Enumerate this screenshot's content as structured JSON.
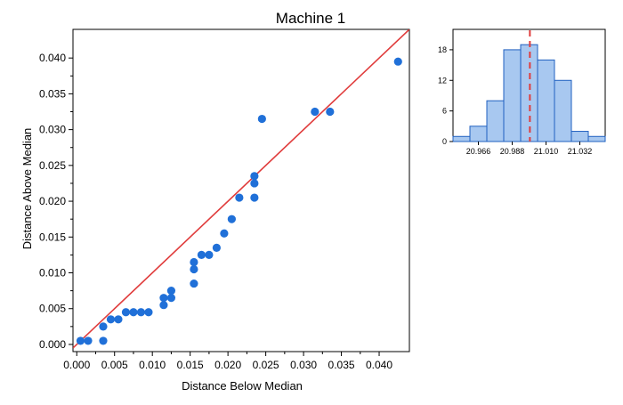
{
  "chart_data": [
    {
      "type": "scatter",
      "title": "Machine 1",
      "xlabel": "Distance Below Median",
      "ylabel": "Distance Above Median",
      "xlim": [
        -0.0005,
        0.044
      ],
      "ylim": [
        -0.001,
        0.044
      ],
      "xticks": [
        "0.000",
        "0.005",
        "0.010",
        "0.015",
        "0.020",
        "0.025",
        "0.030",
        "0.035",
        "0.040"
      ],
      "yticks": [
        "0.000",
        "0.005",
        "0.010",
        "0.015",
        "0.020",
        "0.025",
        "0.030",
        "0.035",
        "0.040"
      ],
      "grid": false,
      "reference_line": {
        "slope": 1,
        "intercept": 0,
        "color": "#e03c3c"
      },
      "marker_color": "#2070d8",
      "points": [
        {
          "x": 0.0005,
          "y": 0.0005
        },
        {
          "x": 0.0015,
          "y": 0.0005
        },
        {
          "x": 0.0035,
          "y": 0.0005
        },
        {
          "x": 0.0035,
          "y": 0.0025
        },
        {
          "x": 0.0045,
          "y": 0.0035
        },
        {
          "x": 0.0055,
          "y": 0.0035
        },
        {
          "x": 0.0065,
          "y": 0.0045
        },
        {
          "x": 0.0075,
          "y": 0.0045
        },
        {
          "x": 0.0085,
          "y": 0.0045
        },
        {
          "x": 0.0095,
          "y": 0.0045
        },
        {
          "x": 0.0115,
          "y": 0.0055
        },
        {
          "x": 0.0115,
          "y": 0.0065
        },
        {
          "x": 0.0125,
          "y": 0.0065
        },
        {
          "x": 0.0125,
          "y": 0.0075
        },
        {
          "x": 0.0155,
          "y": 0.0085
        },
        {
          "x": 0.0155,
          "y": 0.0105
        },
        {
          "x": 0.0155,
          "y": 0.0115
        },
        {
          "x": 0.0165,
          "y": 0.0125
        },
        {
          "x": 0.0175,
          "y": 0.0125
        },
        {
          "x": 0.0185,
          "y": 0.0135
        },
        {
          "x": 0.0195,
          "y": 0.0155
        },
        {
          "x": 0.0205,
          "y": 0.0175
        },
        {
          "x": 0.0215,
          "y": 0.0205
        },
        {
          "x": 0.0235,
          "y": 0.0205
        },
        {
          "x": 0.0235,
          "y": 0.0225
        },
        {
          "x": 0.0235,
          "y": 0.0235
        },
        {
          "x": 0.0245,
          "y": 0.0315
        },
        {
          "x": 0.0315,
          "y": 0.0325
        },
        {
          "x": 0.0335,
          "y": 0.0325
        },
        {
          "x": 0.0425,
          "y": 0.0395
        }
      ]
    },
    {
      "type": "bar",
      "subtype": "histogram",
      "xticks": [
        "20.966",
        "20.988",
        "21.010",
        "21.032"
      ],
      "yticks": [
        "0",
        "6",
        "12",
        "18"
      ],
      "ylim": [
        0,
        22
      ],
      "bin_edges": [
        20.9495,
        20.9605,
        20.9715,
        20.9825,
        20.9935,
        21.0045,
        21.0155,
        21.0265,
        21.0375,
        21.0485
      ],
      "values": [
        1,
        3,
        8,
        18,
        19,
        16,
        12,
        2,
        1
      ],
      "median_line": {
        "x": 20.9995,
        "color": "#e03c3c",
        "style": "dashed"
      },
      "bar_color": "#a8c8f0",
      "bar_edge_color": "#2060c0"
    }
  ]
}
